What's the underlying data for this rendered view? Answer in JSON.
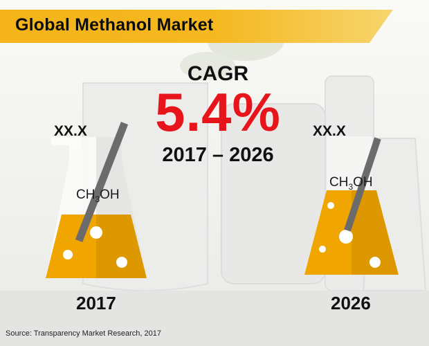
{
  "title": "Global Methanol Market",
  "cagr": {
    "label": "CAGR",
    "value": "5.4%",
    "period": "2017 – 2026"
  },
  "left": {
    "value": "XX.X",
    "formula_prefix": "CH",
    "formula_sub": "3",
    "formula_suffix": "OH",
    "year": "2017"
  },
  "right": {
    "value": "XX.X",
    "formula_prefix": "CH",
    "formula_sub": "3",
    "formula_suffix": "OH",
    "year": "2026"
  },
  "source": "Source: Transparency Market Research, 2017",
  "colors": {
    "title_bar": "#f4b41a",
    "cagr_value": "#e8141c",
    "liquid": "#f0a500",
    "flask_outline": "#333333"
  },
  "icons": [
    "erlenmeyer-flask-icon",
    "stirring-rod-icon",
    "bubble-icon"
  ]
}
